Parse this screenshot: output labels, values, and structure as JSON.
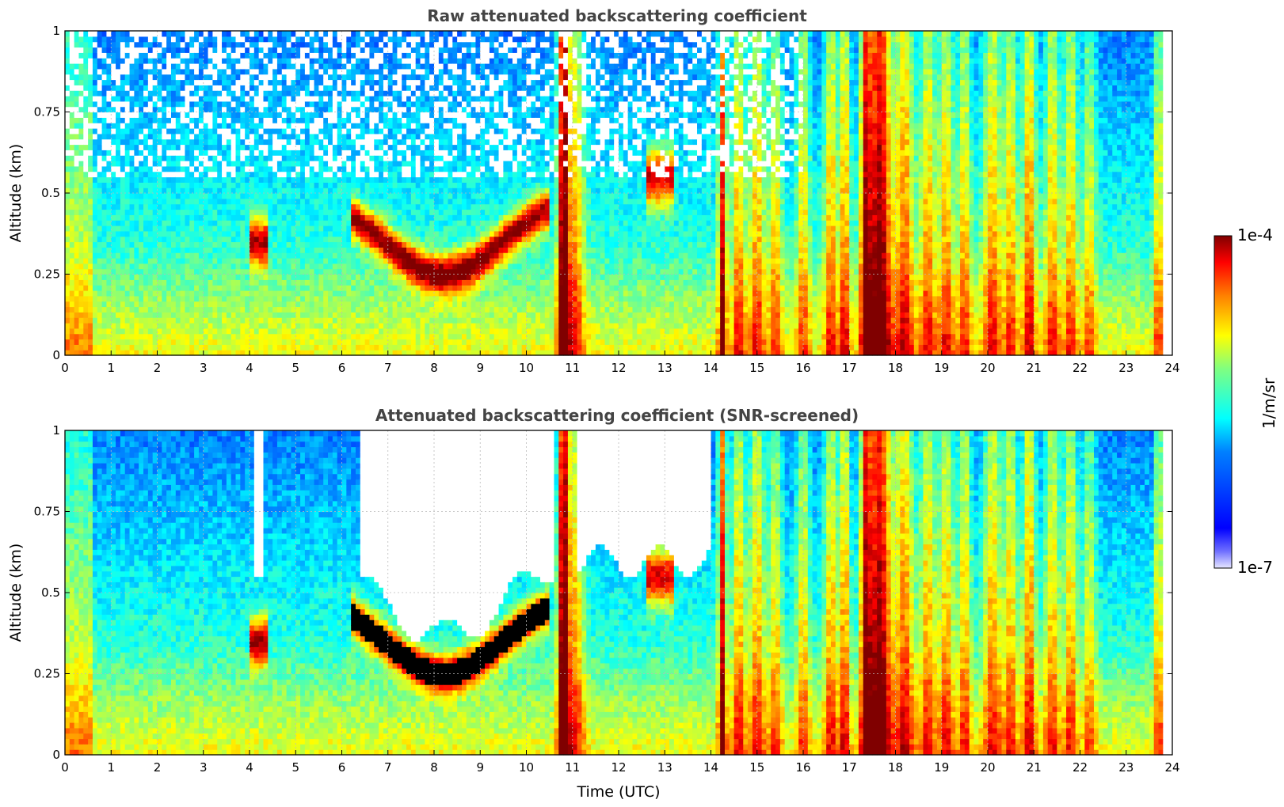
{
  "figure": {
    "colorbar": {
      "label": "1/m/sr",
      "max_label": "1e-4",
      "min_label": "1e-7",
      "range": [
        1e-07,
        0.0001
      ],
      "colormap": "jet",
      "scale": "log"
    },
    "xlabel": "Time (UTC)",
    "ylabel": "Altitude (km)"
  },
  "chart_data": [
    {
      "type": "heatmap",
      "title": "Raw attenuated backscattering coefficient",
      "xlabel": "",
      "ylabel": "Altitude (km)",
      "xlim": [
        0,
        24
      ],
      "ylim": [
        0,
        1
      ],
      "xticks": [
        "0",
        "1",
        "2",
        "3",
        "4",
        "5",
        "6",
        "7",
        "8",
        "9",
        "10",
        "11",
        "12",
        "13",
        "14",
        "15",
        "16",
        "17",
        "18",
        "19",
        "20",
        "21",
        "22",
        "23",
        "24"
      ],
      "yticks": [
        "0",
        "0.25",
        "0.5",
        "0.75",
        "1"
      ],
      "grid": true,
      "features": [
        {
          "x_start": 10.7,
          "x_end": 10.9,
          "y_start": 0,
          "y_end": 1,
          "level": "high"
        },
        {
          "x_start": 17.3,
          "x_end": 17.9,
          "y_start": 0,
          "y_end": 1,
          "level": "high"
        },
        {
          "x_start": 6.2,
          "x_end": 10.5,
          "y_start": 0.2,
          "y_end": 0.55,
          "level": "high"
        },
        {
          "x_start": 4.0,
          "x_end": 4.4,
          "y_start": 0.28,
          "y_end": 0.45,
          "level": "high"
        },
        {
          "x_start": 12.7,
          "x_end": 13.2,
          "y_start": 0.45,
          "y_end": 0.65,
          "level": "high"
        }
      ]
    },
    {
      "type": "heatmap",
      "title": "Attenuated backscattering coefficient (SNR-screened)",
      "xlabel": "Time (UTC)",
      "ylabel": "Altitude (km)",
      "xlim": [
        0,
        24
      ],
      "ylim": [
        0,
        1
      ],
      "xticks": [
        "0",
        "1",
        "2",
        "3",
        "4",
        "5",
        "6",
        "7",
        "8",
        "9",
        "10",
        "11",
        "12",
        "13",
        "14",
        "15",
        "16",
        "17",
        "18",
        "19",
        "20",
        "21",
        "22",
        "23",
        "24"
      ],
      "yticks": [
        "0",
        "0.25",
        "0.5",
        "0.75",
        "1"
      ],
      "grid": true,
      "features": [
        {
          "x_start": 10.7,
          "x_end": 10.9,
          "y_start": 0,
          "y_end": 1,
          "level": "high"
        },
        {
          "x_start": 17.3,
          "x_end": 17.9,
          "y_start": 0,
          "y_end": 1,
          "level": "high"
        },
        {
          "x_start": 6.2,
          "x_end": 10.5,
          "y_start": 0.2,
          "y_end": 0.55,
          "level": "saturated"
        },
        {
          "x_start": 6.5,
          "x_end": 10.5,
          "y_start": 0.45,
          "y_end": 1,
          "level": "screened"
        },
        {
          "x_start": 11.0,
          "x_end": 14.0,
          "y_start": 0.55,
          "y_end": 1,
          "level": "screened"
        }
      ]
    }
  ]
}
